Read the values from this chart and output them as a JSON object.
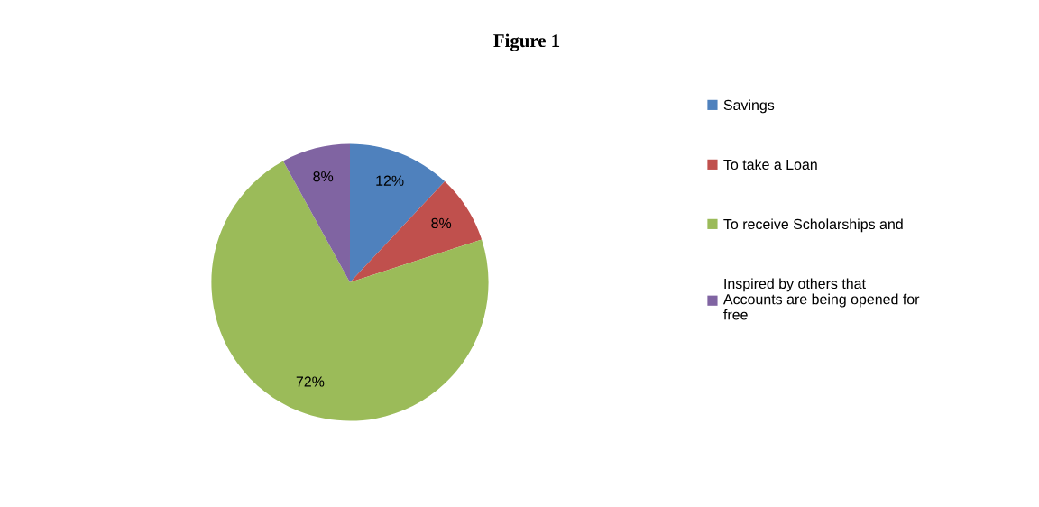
{
  "chart_data": {
    "type": "pie",
    "title": "Figure 1",
    "categories": [
      "Savings",
      "To take a Loan",
      "To receive Scholarships and",
      "Inspired by others that Accounts are being opened for free"
    ],
    "values": [
      12,
      8,
      72,
      8
    ],
    "colors": [
      "#4f81bd",
      "#c0504d",
      "#9bbb59",
      "#8064a2"
    ],
    "value_labels": [
      "12%",
      "8%",
      "72%",
      "8%"
    ],
    "legend": "right"
  }
}
